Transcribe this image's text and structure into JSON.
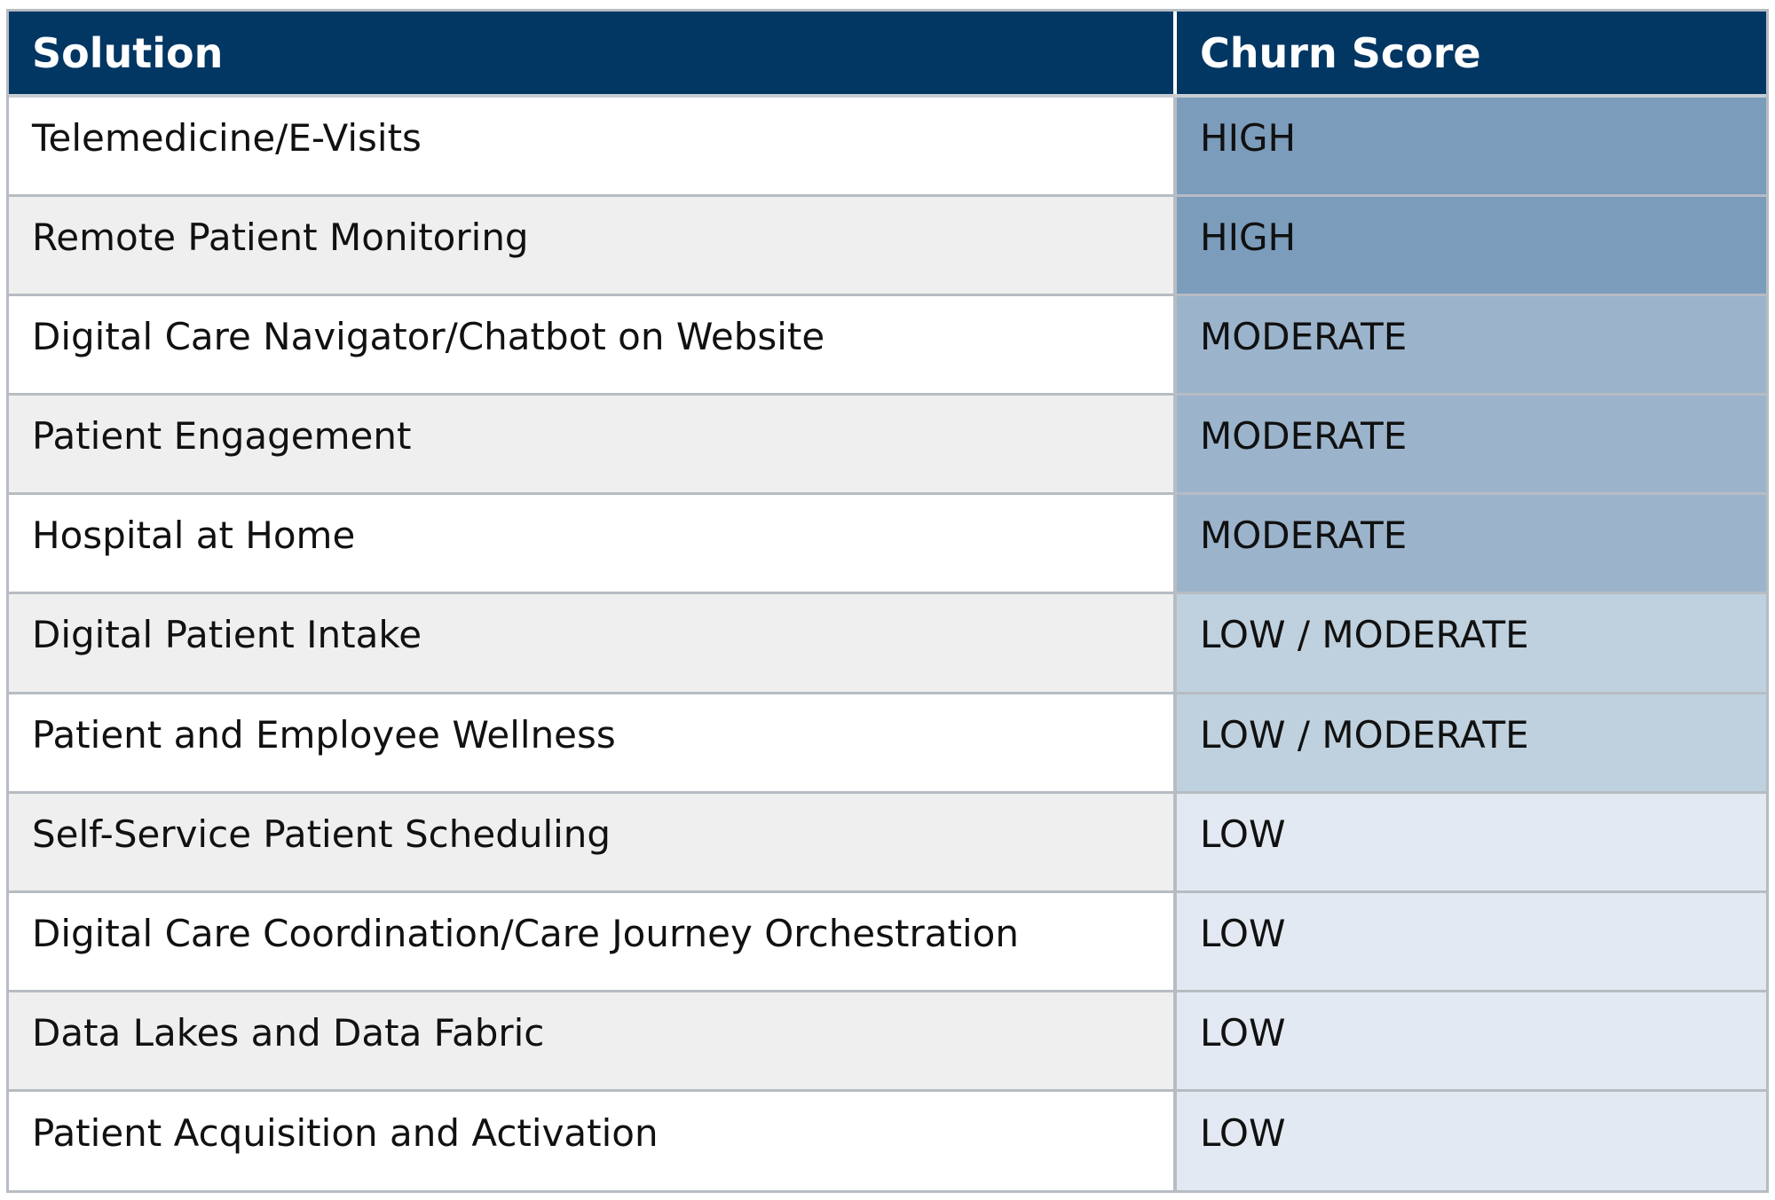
{
  "table": {
    "headers": {
      "solution": "Solution",
      "churn_score": "Churn Score"
    },
    "rows": [
      {
        "solution": "Telemedicine/E-Visits",
        "churn_score": "HIGH",
        "level": "high"
      },
      {
        "solution": "Remote Patient Monitoring",
        "churn_score": "HIGH",
        "level": "high"
      },
      {
        "solution": "Digital Care Navigator/Chatbot on Website",
        "churn_score": "MODERATE",
        "level": "moderate"
      },
      {
        "solution": "Patient Engagement",
        "churn_score": "MODERATE",
        "level": "moderate"
      },
      {
        "solution": "Hospital at Home",
        "churn_score": "MODERATE",
        "level": "moderate"
      },
      {
        "solution": "Digital Patient Intake",
        "churn_score": "LOW / MODERATE",
        "level": "low-moderate"
      },
      {
        "solution": "Patient and Employee Wellness",
        "churn_score": "LOW / MODERATE",
        "level": "low-moderate"
      },
      {
        "solution": "Self-Service Patient Scheduling",
        "churn_score": "LOW",
        "level": "low"
      },
      {
        "solution": "Digital Care Coordination/Care Journey Orchestration",
        "churn_score": "LOW",
        "level": "low"
      },
      {
        "solution": "Data Lakes and Data Fabric",
        "churn_score": "LOW",
        "level": "low"
      },
      {
        "solution": "Patient Acquisition and Activation",
        "churn_score": "LOW",
        "level": "low"
      }
    ]
  },
  "colors": {
    "header_bg": "#023763",
    "header_text": "#ffffff",
    "high": "#7b9cbb",
    "moderate": "#9bb4cc",
    "low_moderate": "#bfd1de",
    "low": "#e3e9f2",
    "row_alt": "#efefef"
  }
}
